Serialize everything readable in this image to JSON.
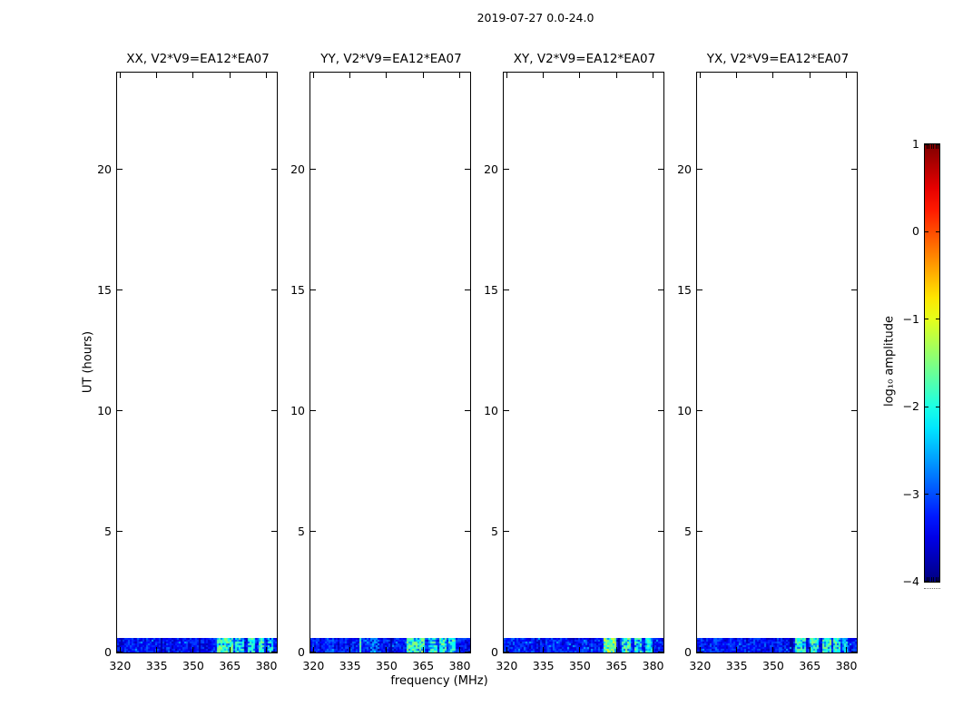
{
  "figure": {
    "background": "#ffffff",
    "text_color": "#000000"
  },
  "chart_data": {
    "type": "heatmap",
    "suptitle": "2019-07-27 0.0-24.0",
    "panels": [
      {
        "title": "XX, V2*V9=EA12*EA07",
        "seed": 101,
        "bright_regions": [
          [
            359.5,
            366.5,
            -1.7
          ],
          [
            367.5,
            370.5,
            -2.0
          ],
          [
            372,
            375,
            -1.8
          ],
          [
            376.5,
            379,
            -1.9
          ],
          [
            380.5,
            382.5,
            -2.1
          ]
        ],
        "bright_lines": [],
        "dropout_lines": [
          336.8,
          352.5
        ]
      },
      {
        "title": "YY, V2*V9=EA12*EA07",
        "seed": 202,
        "bright_regions": [
          [
            343,
            347,
            -2.7
          ],
          [
            358.5,
            366,
            -1.7
          ],
          [
            367,
            370.5,
            -1.9
          ],
          [
            371.5,
            374.5,
            -1.8
          ],
          [
            375.5,
            378.5,
            -1.8
          ]
        ],
        "bright_lines": [
          [
            339.1,
            -1.7
          ]
        ],
        "dropout_lines": [
          352
        ]
      },
      {
        "title": "XY, V2*V9=EA12*EA07",
        "seed": 303,
        "bright_regions": [
          [
            360,
            365,
            -1.4
          ],
          [
            367,
            371,
            -1.7
          ],
          [
            372.5,
            375.5,
            -1.9
          ],
          [
            376.5,
            379.5,
            -2.0
          ]
        ],
        "bright_lines": [],
        "dropout_lines": [
          366.2
        ]
      },
      {
        "title": "YX, V2*V9=EA12*EA07",
        "seed": 404,
        "bright_regions": [
          [
            359,
            363.5,
            -1.9
          ],
          [
            365,
            368.5,
            -1.8
          ],
          [
            370,
            373.5,
            -1.7
          ],
          [
            374.5,
            377.5,
            -1.8
          ],
          [
            378.5,
            380.5,
            -2.3
          ]
        ],
        "bright_lines": [],
        "dropout_lines": [
          357.5
        ]
      }
    ],
    "x_axis": {
      "label": "frequency (MHz)",
      "min": 318.75,
      "max": 384.25,
      "ticks": [
        320,
        335,
        350,
        365,
        380
      ]
    },
    "y_axis": {
      "label": "UT (hours)",
      "min": 0,
      "max": 24,
      "ticks": [
        0,
        5,
        10,
        15,
        20
      ]
    },
    "band": {
      "ut_min": 0.0,
      "ut_max": 0.6,
      "noise_base": -3.3,
      "noise_spread": 0.8
    },
    "colorbar": {
      "label": "log₁₀ amplitude",
      "min": -4,
      "max": 1,
      "ticks": [
        1,
        0,
        -1,
        -2,
        -3,
        -4
      ],
      "colormap": "jet"
    }
  }
}
